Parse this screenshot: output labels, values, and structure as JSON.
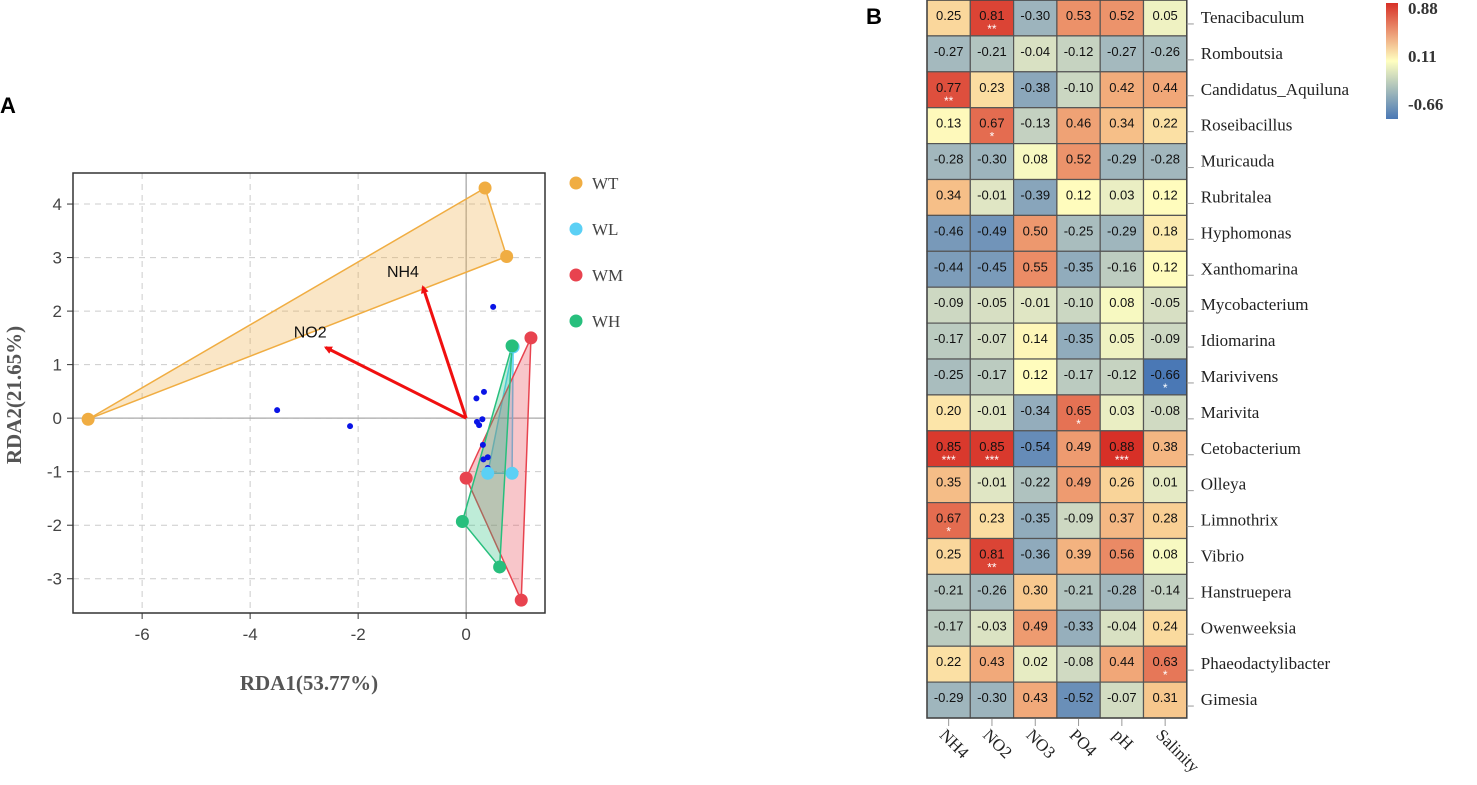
{
  "chart_data": [
    {
      "panel": "A",
      "type": "scatter",
      "xlabel": "RDA1(53.77%)",
      "ylabel": "RDA2(21.65%)",
      "xlim": [
        -7.28,
        1.46
      ],
      "ylim": [
        -3.64,
        4.58
      ],
      "xticks": [
        -6,
        -4,
        -2,
        0
      ],
      "yticks": [
        4,
        3,
        2,
        1,
        0,
        -1,
        -2,
        -3
      ],
      "grid": true,
      "legend_position": "right",
      "groups": [
        {
          "name": "WT",
          "color": "#f0ad42",
          "points": [
            [
              -7.0,
              -0.02
            ],
            [
              0.35,
              4.3
            ],
            [
              0.75,
              3.02
            ]
          ]
        },
        {
          "name": "WL",
          "color": "#5bd0f5",
          "points": [
            [
              0.87,
              1.33
            ],
            [
              0.4,
              -1.03
            ],
            [
              0.85,
              -1.03
            ]
          ]
        },
        {
          "name": "WM",
          "color": "#e8434f",
          "points": [
            [
              1.2,
              1.5
            ],
            [
              0.0,
              -1.12
            ],
            [
              1.02,
              -3.4
            ]
          ]
        },
        {
          "name": "WH",
          "color": "#27bf7d",
          "points": [
            [
              0.85,
              1.35
            ],
            [
              -0.07,
              -1.93
            ],
            [
              0.62,
              -2.78
            ]
          ]
        }
      ],
      "arrows": [
        {
          "label": "NH4",
          "end": [
            -0.8,
            2.45
          ]
        },
        {
          "label": "NO2",
          "end": [
            -2.6,
            1.32
          ]
        }
      ],
      "species_points": [
        [
          0.5,
          2.08
        ],
        [
          0.19,
          0.37
        ],
        [
          0.33,
          0.49
        ],
        [
          0.2,
          -0.07
        ],
        [
          0.24,
          -0.13
        ],
        [
          0.3,
          -0.02
        ],
        [
          0.31,
          -0.5
        ],
        [
          0.32,
          -0.77
        ],
        [
          0.4,
          -0.73
        ],
        [
          0.4,
          -0.93
        ],
        [
          -3.5,
          0.15
        ],
        [
          -2.15,
          -0.15
        ]
      ]
    },
    {
      "panel": "B",
      "type": "heatmap",
      "columns": [
        "NH4",
        "NO2",
        "NO3",
        "PO4",
        "pH",
        "Salinity"
      ],
      "rows": [
        "Tenacibaculum",
        "Romboutsia",
        "Candidatus_Aquiluna",
        "Roseibacillus",
        "Muricauda",
        "Rubritalea",
        "Hyphomonas",
        "Xanthomarina",
        "Mycobacterium",
        "Idiomarina",
        "Marivivens",
        "Marivita",
        "Cetobacterium",
        "Olleya",
        "Limnothrix",
        "Vibrio",
        "Hanstruepera",
        "Owenweeksia",
        "Phaeodactylibacter",
        "Gimesia"
      ],
      "values": [
        [
          0.25,
          0.81,
          -0.3,
          0.53,
          0.52,
          0.05
        ],
        [
          -0.27,
          -0.21,
          -0.04,
          -0.12,
          -0.27,
          -0.26
        ],
        [
          0.77,
          0.23,
          -0.38,
          -0.1,
          0.42,
          0.44
        ],
        [
          0.13,
          0.67,
          -0.13,
          0.46,
          0.34,
          0.22
        ],
        [
          -0.28,
          -0.3,
          0.08,
          0.52,
          -0.29,
          -0.28
        ],
        [
          0.34,
          -0.01,
          -0.39,
          0.12,
          0.03,
          0.12
        ],
        [
          -0.46,
          -0.49,
          0.5,
          -0.25,
          -0.29,
          0.18
        ],
        [
          -0.44,
          -0.45,
          0.55,
          -0.35,
          -0.16,
          0.12
        ],
        [
          -0.09,
          -0.05,
          -0.01,
          -0.1,
          0.08,
          -0.05
        ],
        [
          -0.17,
          -0.07,
          0.14,
          -0.35,
          0.05,
          -0.09
        ],
        [
          -0.25,
          -0.17,
          0.12,
          -0.17,
          -0.12,
          -0.66
        ],
        [
          0.2,
          -0.01,
          -0.34,
          0.65,
          0.03,
          -0.08
        ],
        [
          0.85,
          0.85,
          -0.54,
          0.49,
          0.88,
          0.38
        ],
        [
          0.35,
          -0.01,
          -0.22,
          0.49,
          0.26,
          0.01
        ],
        [
          0.67,
          0.23,
          -0.35,
          -0.09,
          0.37,
          0.28
        ],
        [
          0.25,
          0.81,
          -0.36,
          0.39,
          0.56,
          0.08
        ],
        [
          -0.21,
          -0.26,
          0.3,
          -0.21,
          -0.28,
          -0.14
        ],
        [
          -0.17,
          -0.03,
          0.49,
          -0.33,
          -0.04,
          0.24
        ],
        [
          0.22,
          0.43,
          0.02,
          -0.08,
          0.44,
          0.63
        ],
        [
          -0.29,
          -0.3,
          0.43,
          -0.52,
          -0.07,
          0.31
        ]
      ],
      "significance": [
        [
          "",
          "**",
          "",
          "",
          "",
          ""
        ],
        [
          "",
          "",
          "",
          "",
          "",
          ""
        ],
        [
          "**",
          "",
          "",
          "",
          "",
          ""
        ],
        [
          "",
          "*",
          "",
          "",
          "",
          ""
        ],
        [
          "",
          "",
          "",
          "",
          "",
          ""
        ],
        [
          "",
          "",
          "",
          "",
          "",
          ""
        ],
        [
          "",
          "",
          "",
          "",
          "",
          ""
        ],
        [
          "",
          "",
          "",
          "",
          "",
          ""
        ],
        [
          "",
          "",
          "",
          "",
          "",
          ""
        ],
        [
          "",
          "",
          "",
          "",
          "",
          ""
        ],
        [
          "",
          "",
          "",
          "",
          "",
          "*"
        ],
        [
          "",
          "",
          "",
          "*",
          "",
          ""
        ],
        [
          "***",
          "***",
          "",
          "",
          "***",
          ""
        ],
        [
          "",
          "",
          "",
          "",
          "",
          ""
        ],
        [
          "*",
          "",
          "",
          "",
          "",
          ""
        ],
        [
          "",
          "**",
          "",
          "",
          "",
          ""
        ],
        [
          "",
          "",
          "",
          "",
          "",
          ""
        ],
        [
          "",
          "",
          "",
          "",
          "",
          ""
        ],
        [
          "",
          "",
          "",
          "",
          "",
          "*"
        ],
        [
          "",
          "",
          "",
          "",
          "",
          ""
        ]
      ],
      "colorbar": {
        "min": -0.66,
        "mid": 0.11,
        "max": 0.88,
        "labels": [
          "0.88",
          "0.11",
          "-0.66"
        ],
        "colors": [
          "#4a78b5",
          "#ffffc0",
          "#d73027"
        ]
      }
    }
  ],
  "panel_labels": [
    "A",
    "B"
  ]
}
